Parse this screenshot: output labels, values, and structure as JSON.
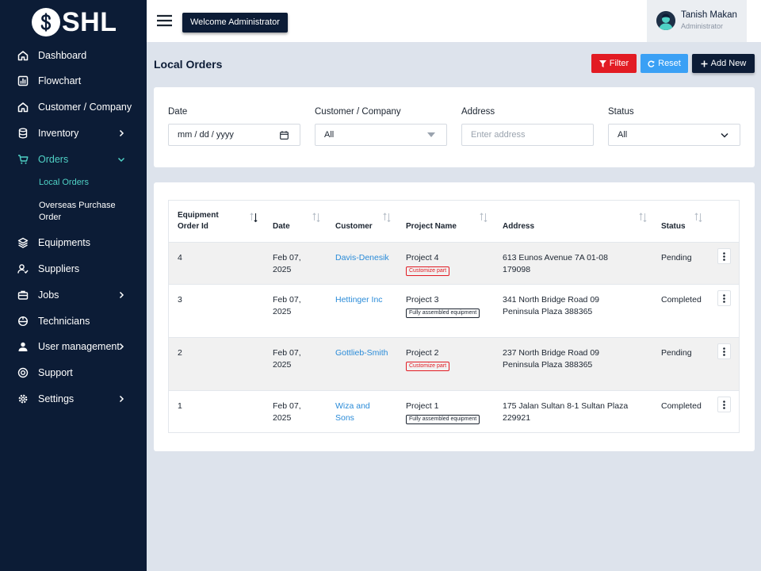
{
  "brand": {
    "logo_text": "SHL"
  },
  "sidebar": {
    "items": [
      {
        "label": "Dashboard"
      },
      {
        "label": "Flowchart"
      },
      {
        "label": "Customer / Company"
      },
      {
        "label": "Inventory"
      },
      {
        "label": "Orders"
      },
      {
        "label": "Equipments"
      },
      {
        "label": "Suppliers"
      },
      {
        "label": "Jobs"
      },
      {
        "label": "Technicians"
      },
      {
        "label": "User management"
      },
      {
        "label": "Support"
      },
      {
        "label": "Settings"
      }
    ],
    "sub_items": [
      {
        "label": "Local Orders"
      },
      {
        "label": "Overseas Purchase Order"
      }
    ]
  },
  "topbar": {
    "welcome": "Welcome Administrator",
    "user_name": "Tanish Makan",
    "user_role": "Administrator"
  },
  "page": {
    "title": "Local Orders",
    "filter_label": "Filter",
    "reset_label": "Reset",
    "add_label": "Add New"
  },
  "filters": {
    "date_label": "Date",
    "date_value": "mm / dd / yyyy",
    "customer_label": "Customer / Company",
    "customer_value": "All",
    "address_label": "Address",
    "address_placeholder": "Enter address",
    "status_label": "Status",
    "status_value": "All"
  },
  "table": {
    "headers": [
      "Equipment Order Id",
      "Date",
      "Customer",
      "Project Name",
      "Address",
      "Status"
    ],
    "rows": [
      {
        "id": "4",
        "date": "Feb 07, 2025",
        "customer": "Davis-Denesik",
        "project": "Project 4",
        "badge": "Customize part",
        "address": "613 Eunos Avenue 7A 01-08 179098",
        "status": "Pending"
      },
      {
        "id": "3",
        "date": "Feb 07, 2025",
        "customer": "Hettinger Inc",
        "project": "Project 3",
        "badge": "Fully assembled equipment",
        "address": "341 North Bridge Road 09 Peninsula Plaza 388365",
        "status": "Completed"
      },
      {
        "id": "2",
        "date": "Feb 07, 2025",
        "customer": "Gottlieb-Smith",
        "project": "Project 2",
        "badge": "Customize part",
        "address": "237 North Bridge Road 09 Peninsula Plaza 388365",
        "status": "Pending"
      },
      {
        "id": "1",
        "date": "Feb 07, 2025",
        "customer": "Wiza and Sons",
        "project": "Project 1",
        "badge": "Fully assembled equipment",
        "address": "175 Jalan Sultan 8-1 Sultan Plaza 229921",
        "status": "Completed"
      }
    ]
  },
  "colors": {
    "sidebar_bg": "#0c1c36",
    "accent_teal": "#4fd1c5",
    "filter_red": "#e21b23",
    "reset_blue": "#3aa0f5",
    "link_blue": "#2a8bd8"
  }
}
